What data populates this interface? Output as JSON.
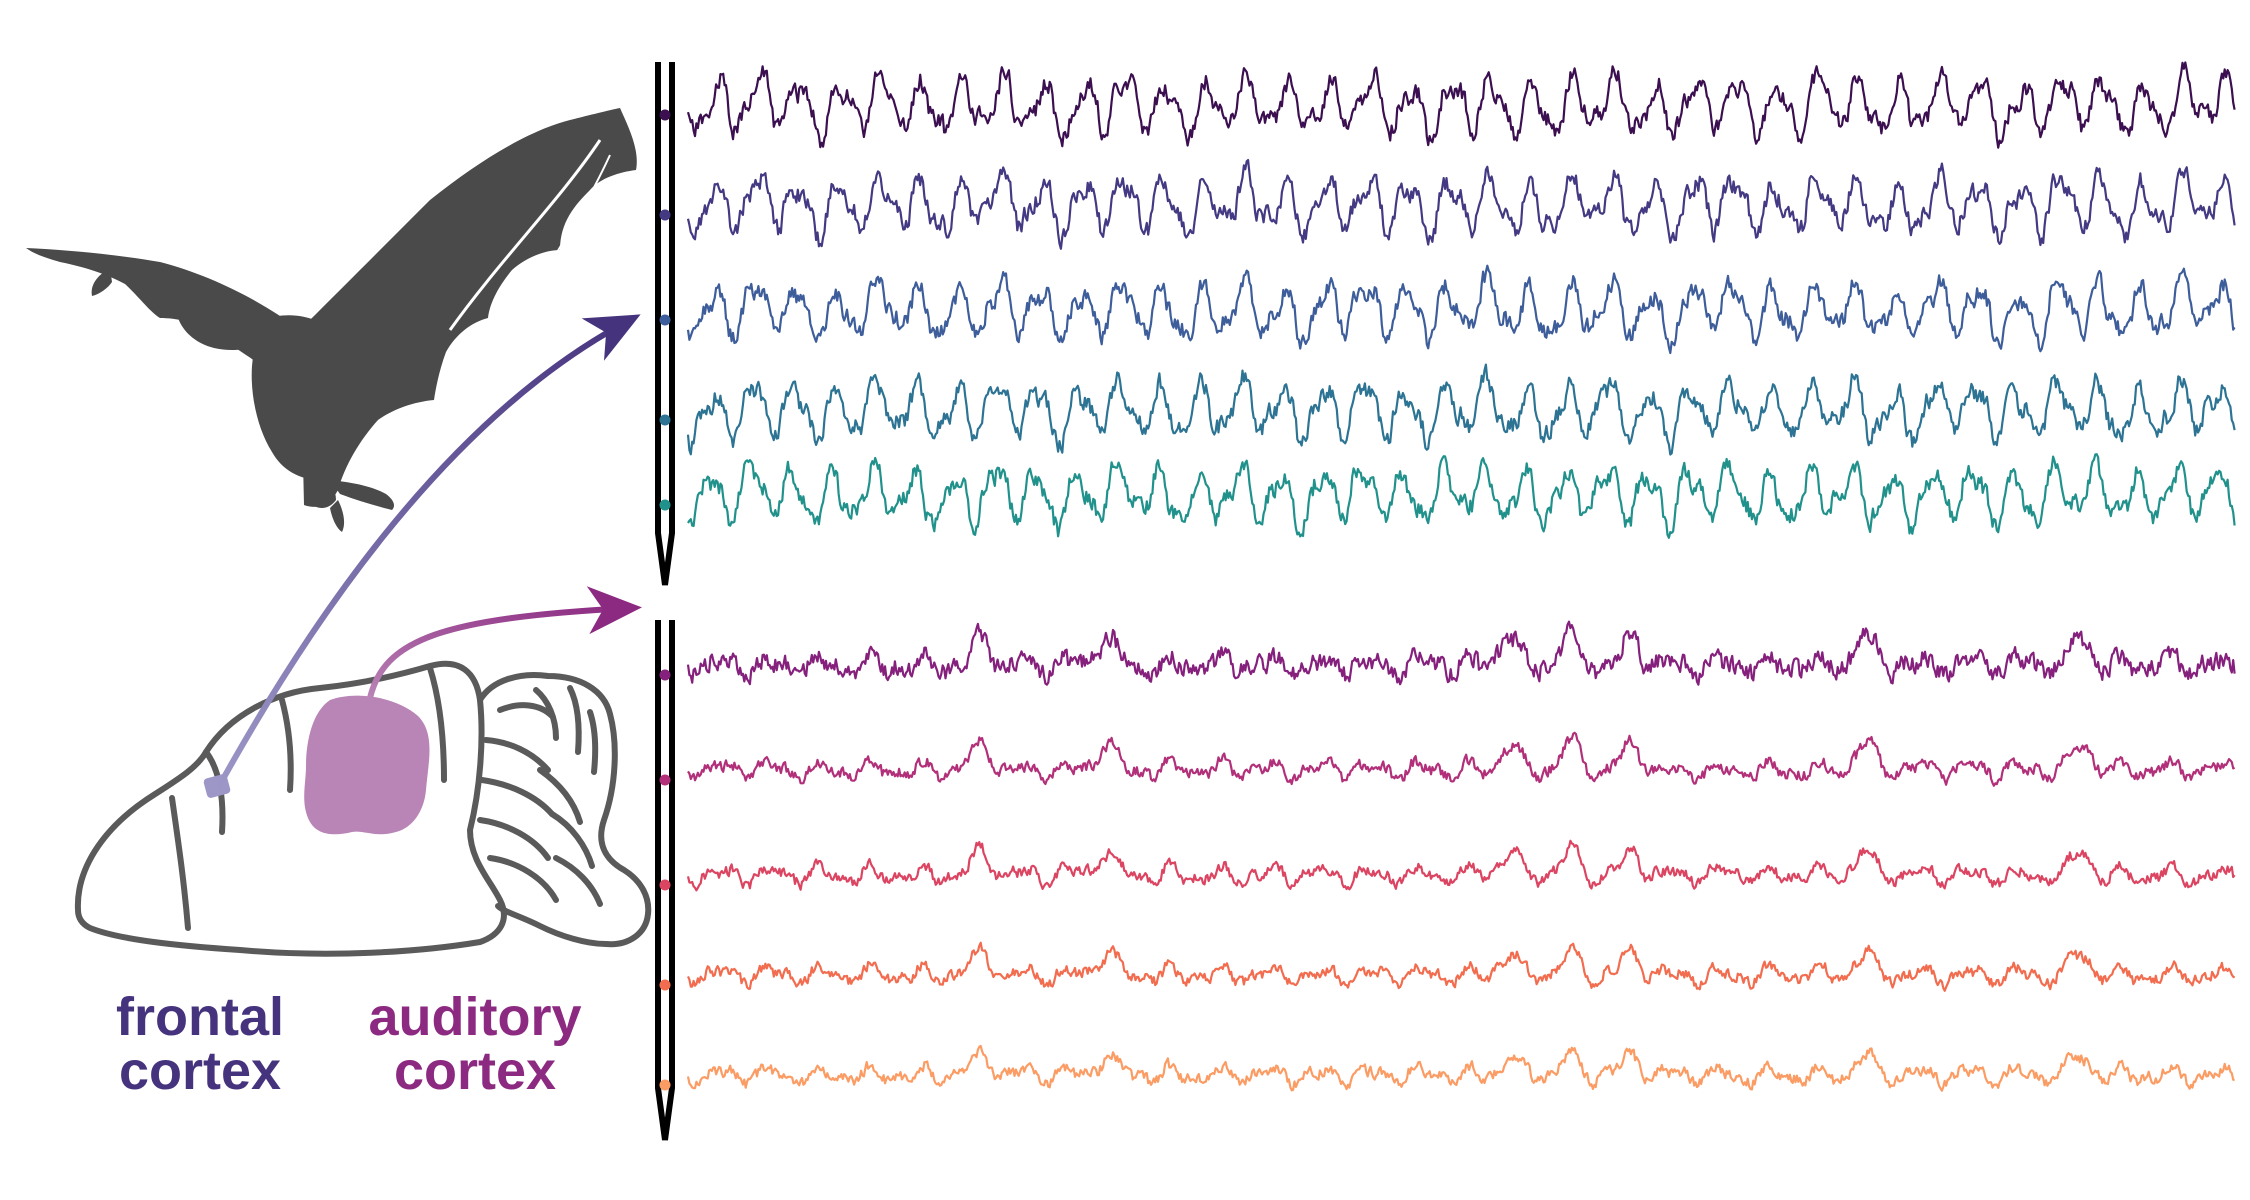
{
  "labels": {
    "frontal": {
      "line1": "frontal",
      "line2": "cortex"
    },
    "auditory": {
      "line1": "auditory",
      "line2": "cortex"
    }
  },
  "colors": {
    "frontal_label": "#46337e",
    "auditory_label": "#8c2981",
    "frontal_arrow": "#46337e",
    "auditory_arrow": "#8c2981",
    "frontal_region": "#9c97c7",
    "auditory_region": "#b984b6",
    "bat": "#4a4a4a",
    "brain_outline": "#5a5a5a",
    "probe": "#000000"
  },
  "probes": [
    {
      "region": "frontal",
      "channels": [
        {
          "color": "#3b0f50",
          "pattern": "frontal",
          "seed": 11
        },
        {
          "color": "#433a83",
          "pattern": "frontal",
          "seed": 23
        },
        {
          "color": "#3d5d9b",
          "pattern": "frontal",
          "seed": 37
        },
        {
          "color": "#2d7494",
          "pattern": "frontal",
          "seed": 41
        },
        {
          "color": "#21918c",
          "pattern": "frontal",
          "seed": 53
        }
      ]
    },
    {
      "region": "auditory",
      "channels": [
        {
          "color": "#85207d",
          "pattern": "auditory",
          "seed": 61
        },
        {
          "color": "#b2307a",
          "pattern": "auditory",
          "seed": 67
        },
        {
          "color": "#dc4562",
          "pattern": "auditory",
          "seed": 71
        },
        {
          "color": "#f26d4f",
          "pattern": "auditory",
          "seed": 79
        },
        {
          "color": "#fb9c64",
          "pattern": "auditory",
          "seed": 83
        }
      ]
    }
  ]
}
